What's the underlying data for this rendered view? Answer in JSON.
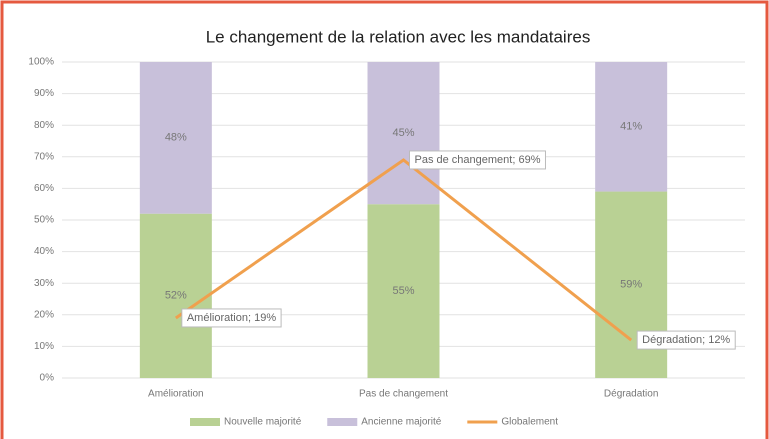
{
  "chart_data": {
    "type": "bar",
    "stacked": true,
    "title": "Le changement de la relation avec les mandataires",
    "categories": [
      "Amélioration",
      "Pas de changement",
      "Dégradation"
    ],
    "series": [
      {
        "name": "Nouvelle majorité",
        "color": "#b9d194",
        "values": [
          52,
          55,
          59
        ],
        "value_labels": [
          "52%",
          "55%",
          "59%"
        ]
      },
      {
        "name": "Ancienne majorité",
        "color": "#c8c0da",
        "values": [
          48,
          45,
          41
        ],
        "value_labels": [
          "48%",
          "45%",
          "41%"
        ]
      },
      {
        "name": "Globalement",
        "type": "line",
        "color": "#f0a04e",
        "values": [
          19,
          69,
          12
        ],
        "value_labels": [
          "Amélioration; 19%",
          "Pas de changement; 69%",
          "Dégradation; 12%"
        ]
      }
    ],
    "ylim": [
      0,
      100
    ],
    "yticks": [
      {
        "value": 0,
        "label": "0%"
      },
      {
        "value": 10,
        "label": "10%"
      },
      {
        "value": 20,
        "label": "20%"
      },
      {
        "value": 30,
        "label": "30%"
      },
      {
        "value": 40,
        "label": "40%"
      },
      {
        "value": 50,
        "label": "50%"
      },
      {
        "value": 60,
        "label": "60%"
      },
      {
        "value": 70,
        "label": "70%"
      },
      {
        "value": 80,
        "label": "80%"
      },
      {
        "value": 90,
        "label": "90%"
      },
      {
        "value": 100,
        "label": "100%"
      }
    ],
    "grid": true,
    "legend": "bottom"
  }
}
